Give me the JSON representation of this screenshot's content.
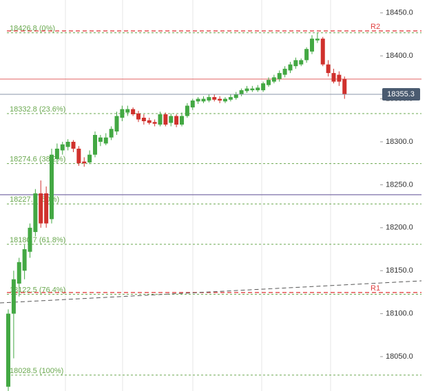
{
  "chart_data": {
    "type": "candlestick",
    "open": [
      18015,
      18100,
      18135,
      18150,
      18172,
      18195,
      18240,
      18240,
      18210,
      18280,
      18290,
      18294,
      18300,
      18292,
      18277,
      18276,
      18285,
      18300,
      18298,
      18305,
      18312,
      18328,
      18334,
      18338,
      18333,
      18328,
      18325,
      18323,
      18320,
      18332,
      18322,
      18330,
      18320,
      18330,
      18340,
      18347,
      18347,
      18348,
      18352,
      18350,
      18347,
      18349,
      18351,
      18355,
      18359,
      18360,
      18360,
      18360,
      18366,
      18370,
      18373,
      18378,
      18383,
      18388,
      18390,
      18395,
      18405,
      18418,
      18420,
      18390,
      18380,
      18378,
      18373
    ],
    "high": [
      18105,
      18150,
      18165,
      18180,
      18205,
      18245,
      18255,
      18248,
      18292,
      18298,
      18300,
      18303,
      18302,
      18295,
      18282,
      18290,
      18312,
      18308,
      18310,
      18318,
      18335,
      18342,
      18342,
      18340,
      18336,
      18332,
      18328,
      18326,
      18335,
      18334,
      18333,
      18332,
      18334,
      18345,
      18350,
      18352,
      18353,
      18355,
      18355,
      18353,
      18352,
      18355,
      18358,
      18362,
      18365,
      18365,
      18366,
      18370,
      18375,
      18378,
      18383,
      18388,
      18393,
      18398,
      18397,
      18410,
      18424,
      18427,
      18422,
      18395,
      18385,
      18382,
      18376
    ],
    "low": [
      18005,
      18048,
      18120,
      18140,
      18165,
      18190,
      18200,
      18200,
      18205,
      18275,
      18285,
      18290,
      18288,
      18272,
      18271,
      18274,
      18282,
      18295,
      18296,
      18302,
      18308,
      18324,
      18330,
      18330,
      18323,
      18320,
      18320,
      18318,
      18318,
      18318,
      18318,
      18317,
      18318,
      18328,
      18337,
      18344,
      18345,
      18346,
      18347,
      18345,
      18345,
      18347,
      18349,
      18353,
      18357,
      18358,
      18358,
      18358,
      18364,
      18368,
      18370,
      18375,
      18380,
      18385,
      18388,
      18392,
      18402,
      18415,
      18388,
      18376,
      18368,
      18365,
      18350
    ],
    "close": [
      18100,
      18140,
      18160,
      18175,
      18200,
      18240,
      18205,
      18205,
      18285,
      18292,
      18297,
      18300,
      18292,
      18275,
      18275,
      18285,
      18308,
      18305,
      18305,
      18315,
      18330,
      18338,
      18338,
      18332,
      18326,
      18324,
      18322,
      18321,
      18332,
      18320,
      18330,
      18320,
      18330,
      18342,
      18348,
      18350,
      18350,
      18352,
      18349,
      18348,
      18350,
      18352,
      18355,
      18360,
      18362,
      18362,
      18363,
      18368,
      18372,
      18375,
      18380,
      18385,
      18390,
      18395,
      18395,
      18408,
      18420,
      18420,
      18390,
      18380,
      18370,
      18370,
      18355
    ],
    "up_color": "#43a843",
    "down_color": "#d0312d",
    "ylim": [
      18010,
      18465
    ],
    "yticks": [
      {
        "value": 18050,
        "label": "18050.0"
      },
      {
        "value": 18100,
        "label": "18100.0"
      },
      {
        "value": 18150,
        "label": "18150.0"
      },
      {
        "value": 18200,
        "label": "18200.0"
      },
      {
        "value": 18250,
        "label": "18250.0"
      },
      {
        "value": 18300,
        "label": "18300.0"
      },
      {
        "value": 18350,
        "label": "18350.0"
      },
      {
        "value": 18400,
        "label": "18400.0"
      },
      {
        "value": 18450,
        "label": "18450.0"
      }
    ],
    "fib_levels": [
      {
        "value": 18426.8,
        "label": "18426.8 (0%)"
      },
      {
        "value": 18332.8,
        "label": "18332.8 (23.6%)"
      },
      {
        "value": 18274.6,
        "label": "18274.6 (38.2%)"
      },
      {
        "value": 18227.7,
        "label": "18227.7 (50%)"
      },
      {
        "value": 18180.7,
        "label": "18180.7 (61.8%)"
      },
      {
        "value": 18122.5,
        "label": "18122.5 (76.4%)"
      },
      {
        "value": 18028.5,
        "label": "18028.5 (100%)"
      }
    ],
    "fib_color": "#6aa84f",
    "resistance": [
      {
        "value": 18429,
        "label": "R2"
      },
      {
        "value": 18124.6,
        "label": "R1"
      }
    ],
    "resistance_color": "#e04040",
    "lines": [
      {
        "value": 18373,
        "color": "#e88080"
      },
      {
        "value": 18238.4,
        "color": "#7b6fa8"
      }
    ],
    "trendline": [
      18112.5,
      18138.2
    ],
    "last_price": 18355.3
  }
}
